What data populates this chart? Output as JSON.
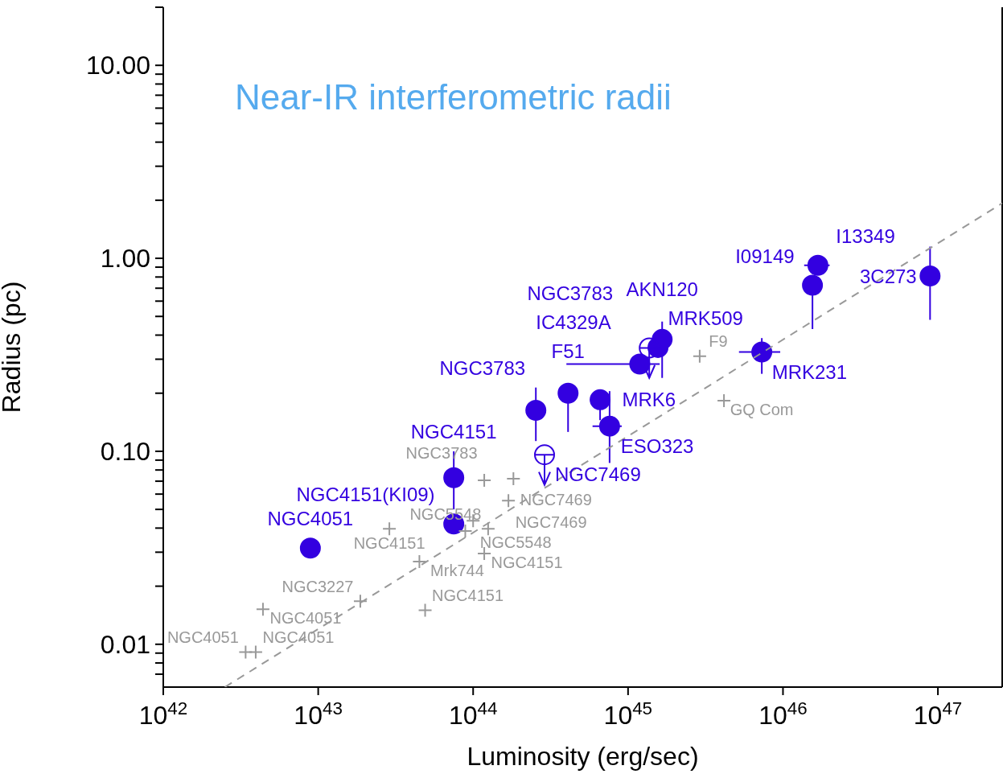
{
  "chart_data": {
    "type": "scatter",
    "title": "Near-IR interferometric radii",
    "xlabel": "Luminosity (erg/sec)",
    "ylabel": "Radius (pc)",
    "log": "xy",
    "grid": false,
    "legend": false,
    "xlim": [
      1e+42,
      2.6e+47
    ],
    "xticks": [
      {
        "value": 1e+42,
        "label": "10$^{42}$"
      },
      {
        "value": 1e+43,
        "label": "10$^{43}$"
      },
      {
        "value": 1e+44,
        "label": "10$^{44}$"
      },
      {
        "value": 1e+45,
        "label": "10$^{45}$"
      },
      {
        "value": 1e+46,
        "label": "10$^{46}$"
      },
      {
        "value": 1e+47,
        "label": "10$^{47}$"
      }
    ],
    "ylim": [
      0.006,
      20
    ],
    "yticks": [
      {
        "value": 0.007,
        "label": null
      },
      {
        "value": 0.008,
        "label": null
      },
      {
        "value": 0.009,
        "label": null
      },
      {
        "value": 0.01,
        "label": "0.01"
      },
      {
        "value": 0.02,
        "label": null
      },
      {
        "value": 0.03,
        "label": null
      },
      {
        "value": 0.04,
        "label": null
      },
      {
        "value": 0.05,
        "label": null
      },
      {
        "value": 0.06,
        "label": null
      },
      {
        "value": 0.07,
        "label": null
      },
      {
        "value": 0.08,
        "label": null
      },
      {
        "value": 0.09,
        "label": null
      },
      {
        "value": 0.1,
        "label": "0.10"
      },
      {
        "value": 0.2,
        "label": null
      },
      {
        "value": 0.3,
        "label": null
      },
      {
        "value": 0.4,
        "label": null
      },
      {
        "value": 0.5,
        "label": null
      },
      {
        "value": 0.6,
        "label": null
      },
      {
        "value": 0.7,
        "label": null
      },
      {
        "value": 0.8,
        "label": null
      },
      {
        "value": 0.9,
        "label": null
      },
      {
        "value": 1,
        "label": "1.00"
      },
      {
        "value": 2,
        "label": null
      },
      {
        "value": 3,
        "label": null
      },
      {
        "value": 4,
        "label": null
      },
      {
        "value": 5,
        "label": null
      },
      {
        "value": 6,
        "label": null
      },
      {
        "value": 7,
        "label": null
      },
      {
        "value": 8,
        "label": null
      },
      {
        "value": 9,
        "label": null
      },
      {
        "value": 10,
        "label": "10.00"
      },
      {
        "value": 20,
        "label": null
      }
    ],
    "series": [
      {
        "type": "scatter",
        "color": "#3300e0",
        "marker": "circle",
        "x": [
          8.9e+42,
          7.5e+43,
          7.5e+43,
          2.54e+44,
          4.1e+44,
          6.6e+44,
          7.6e+44,
          1.19e+45,
          1.56e+45,
          1.66e+45,
          7.3e+45,
          1.55e+46,
          1.68e+46,
          8.9e+46
        ],
        "values": [
          0.0315,
          0.073,
          0.042,
          0.163,
          0.2,
          0.185,
          0.135,
          0.283,
          0.345,
          0.38,
          0.327,
          0.725,
          0.92,
          0.81
        ],
        "errors": [
          null,
          [
            0.05,
            0.1
          ],
          null,
          [
            0.113,
            0.214
          ],
          [
            0.126,
            0.2
          ],
          [
            0.145,
            0.185
          ],
          [
            0.087,
            0.205
          ],
          null,
          null,
          [
            0.24,
            0.47
          ],
          [
            0.252,
            0.386
          ],
          [
            0.43,
            0.725
          ],
          null,
          [
            0.48,
            1.15
          ]
        ],
        "xerrors": [
          null,
          null,
          null,
          null,
          null,
          null,
          [
            5.9e+44,
            9.1e+44
          ],
          [
            4e+44,
            1.6e+45
          ],
          null,
          null,
          [
            5.2e+45,
            9.6e+45
          ],
          null,
          [
            1.37e+46,
            2e+46
          ],
          null
        ]
      },
      {
        "type": "scatter",
        "color": "#3300e0",
        "marker": "circle",
        "x": [
          2.89e+44,
          1.37e+45
        ],
        "values": [
          0.096,
          0.343
        ],
        "errors": [
          [
            0.067,
            0.096
          ],
          [
            0.24,
            0.343
          ]
        ]
      },
      {
        "type": "scatter",
        "color": "#999999",
        "marker": "cross",
        "x": [
          2.88e+43,
          1.18e+44,
          1.82e+44,
          1.69e+44,
          1e+44,
          8.9e+43,
          1.25e+44,
          1.18e+44,
          4.5e+43,
          1.87e+43,
          4.4e+42,
          4.9e+43,
          3.4e+42,
          3.95e+42,
          2.9e+45,
          4.16e+45
        ],
        "values": [
          0.0397,
          0.0707,
          0.0721,
          0.0555,
          0.0437,
          0.0386,
          0.0397,
          0.0295,
          0.0268,
          0.0167,
          0.0152,
          0.015,
          0.0091,
          0.0091,
          0.311,
          0.183
        ]
      },
      {
        "type": "line",
        "color": "#999999",
        "line_style": "dashed",
        "marker": "none",
        "x": [
          2.5e+42,
          2.6e+47
        ],
        "values": [
          0.006,
          1.93
        ]
      }
    ],
    "annotations": [
      {
        "text": "NGC4051",
        "x": 8.9e+42,
        "y": 0.0315
      },
      {
        "text": "NGC4151",
        "x": 7.5e+43,
        "y": 0.073
      },
      {
        "text": "NGC4151(KI09)",
        "x": 7.5e+43,
        "y": 0.042
      },
      {
        "text": "NGC3783",
        "x": 2.54e+44,
        "y": 0.163
      },
      {
        "text": "F51",
        "x": 4.1e+44,
        "y": 0.2
      },
      {
        "text": "MRK6",
        "x": 6.6e+44,
        "y": 0.185
      },
      {
        "text": "ESO323",
        "x": 7.6e+44,
        "y": 0.135
      },
      {
        "text": "IC4329A",
        "x": 1.19e+45,
        "y": 0.283
      },
      {
        "text": "MRK509",
        "x": 1.56e+45,
        "y": 0.345
      },
      {
        "text": "AKN120",
        "x": 1.66e+45,
        "y": 0.38
      },
      {
        "text": "MRK231",
        "x": 7.3e+45,
        "y": 0.327
      },
      {
        "text": "I09149",
        "x": 1.55e+46,
        "y": 0.725
      },
      {
        "text": "I13349",
        "x": 1.68e+46,
        "y": 0.92
      },
      {
        "text": "3C273",
        "x": 8.9e+46,
        "y": 0.81
      },
      {
        "text": "NGC7469",
        "x": 2.89e+44,
        "y": 0.096
      },
      {
        "text": "NGC3783",
        "x": 1.37e+45,
        "y": 0.343
      },
      {
        "text": "NGC4151",
        "x": 2.88e+43,
        "y": 0.0397
      },
      {
        "text": "NGC3783",
        "x": 1.18e+44,
        "y": 0.0707
      },
      {
        "text": "NGC7469",
        "x": 1.82e+44,
        "y": 0.0721
      },
      {
        "text": "NGC7469",
        "x": 1.69e+44,
        "y": 0.0555
      },
      {
        "text": "NGC5548",
        "x": 1e+44,
        "y": 0.0437
      },
      {
        "text": "NGC5548",
        "x": 1.25e+44,
        "y": 0.0397
      },
      {
        "text": "NGC4151",
        "x": 1.18e+44,
        "y": 0.0295
      },
      {
        "text": "Mrk744",
        "x": 4.5e+43,
        "y": 0.0268
      },
      {
        "text": "NGC3227",
        "x": 1.87e+43,
        "y": 0.0167
      },
      {
        "text": "NGC4051",
        "x": 4.4e+42,
        "y": 0.0152
      },
      {
        "text": "NGC4151",
        "x": 4.9e+43,
        "y": 0.015
      },
      {
        "text": "NGC4051",
        "x": 3.4e+42,
        "y": 0.0091
      },
      {
        "text": "NGC4051",
        "x": 3.95e+42,
        "y": 0.0091
      },
      {
        "text": "F9",
        "x": 2.9e+45,
        "y": 0.311
      },
      {
        "text": "GQ Com",
        "x": 4.16e+45,
        "y": 0.183
      }
    ]
  }
}
